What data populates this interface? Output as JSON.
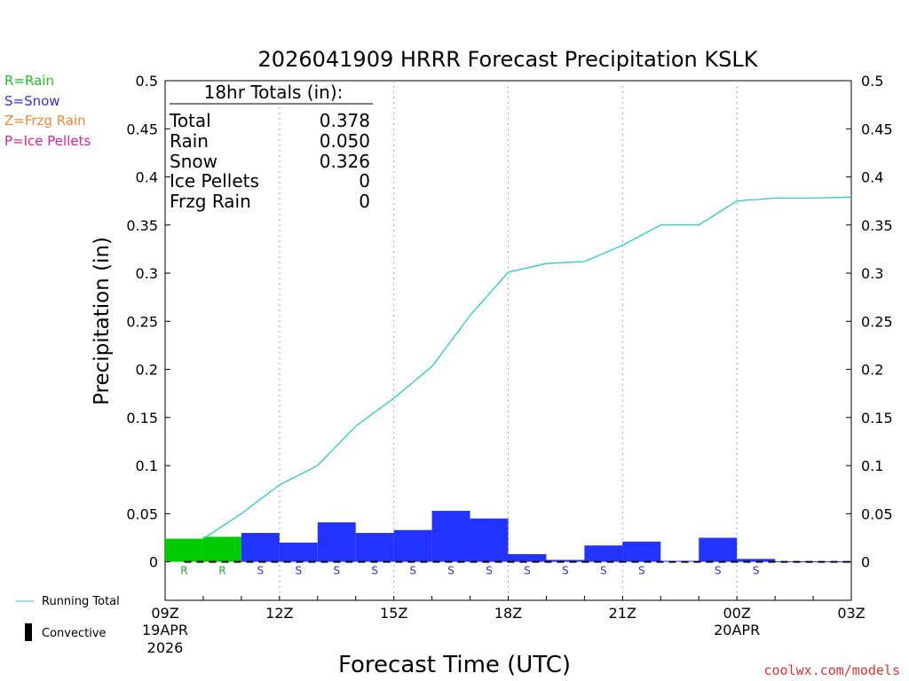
{
  "chart_data": {
    "type": "bar",
    "title": "2026041909 HRRR Forecast Precipitation KSLK",
    "xlabel": "Forecast Time (UTC)",
    "ylabel": "Precipitation (in)",
    "ylim": [
      -0.04,
      0.5
    ],
    "y_ticks": [
      0,
      0.05,
      0.1,
      0.15,
      0.2,
      0.25,
      0.3,
      0.35,
      0.4,
      0.45,
      0.5
    ],
    "y_tick_labels": [
      "0",
      "0.05",
      "0.1",
      "0.15",
      "0.2",
      "0.25",
      "0.3",
      "0.35",
      "0.4",
      "0.45",
      "0.5"
    ],
    "x_range_hours": [
      0,
      18
    ],
    "x_ticks": [
      {
        "hour": 0,
        "label": "09Z",
        "sub1": "19APR",
        "sub2": "2026"
      },
      {
        "hour": 3,
        "label": "12Z",
        "sub1": "",
        "sub2": ""
      },
      {
        "hour": 6,
        "label": "15Z",
        "sub1": "",
        "sub2": ""
      },
      {
        "hour": 9,
        "label": "18Z",
        "sub1": "",
        "sub2": ""
      },
      {
        "hour": 12,
        "label": "21Z",
        "sub1": "",
        "sub2": ""
      },
      {
        "hour": 15,
        "label": "00Z",
        "sub1": "20APR",
        "sub2": ""
      },
      {
        "hour": 18,
        "label": "03Z",
        "sub1": "",
        "sub2": ""
      }
    ],
    "bars": [
      {
        "hour": 1,
        "value": 0.024,
        "type": "R"
      },
      {
        "hour": 2,
        "value": 0.026,
        "type": "R"
      },
      {
        "hour": 3,
        "value": 0.03,
        "type": "S"
      },
      {
        "hour": 4,
        "value": 0.02,
        "type": "S"
      },
      {
        "hour": 5,
        "value": 0.041,
        "type": "S"
      },
      {
        "hour": 6,
        "value": 0.03,
        "type": "S"
      },
      {
        "hour": 7,
        "value": 0.033,
        "type": "S"
      },
      {
        "hour": 8,
        "value": 0.053,
        "type": "S"
      },
      {
        "hour": 9,
        "value": 0.045,
        "type": "S"
      },
      {
        "hour": 10,
        "value": 0.008,
        "type": "S"
      },
      {
        "hour": 11,
        "value": 0.002,
        "type": "S"
      },
      {
        "hour": 12,
        "value": 0.017,
        "type": "S"
      },
      {
        "hour": 13,
        "value": 0.021,
        "type": "S"
      },
      {
        "hour": 14,
        "value": 0.001,
        "type": ""
      },
      {
        "hour": 15,
        "value": 0.025,
        "type": "S"
      },
      {
        "hour": 16,
        "value": 0.003,
        "type": "S"
      },
      {
        "hour": 17,
        "value": 0.0005,
        "type": ""
      },
      {
        "hour": 18,
        "value": 0.0005,
        "type": ""
      }
    ],
    "running_total": {
      "name": "Running Total",
      "hours": [
        1,
        2,
        3,
        4,
        5,
        6,
        7,
        8,
        9,
        10,
        11,
        12,
        13,
        14,
        15,
        16,
        17,
        18
      ],
      "values": [
        0.024,
        0.05,
        0.08,
        0.1,
        0.141,
        0.17,
        0.203,
        0.256,
        0.301,
        0.31,
        0.312,
        0.329,
        0.35,
        0.35,
        0.375,
        0.378,
        0.378,
        0.379
      ]
    },
    "legend_top": [
      {
        "text": "R=Rain",
        "color": "#22c022"
      },
      {
        "text": "S=Snow",
        "color": "#3333ee"
      },
      {
        "text": "Z=Frzg Rain",
        "color": "#ee8833"
      },
      {
        "text": "P=Ice Pellets",
        "color": "#dd2299"
      }
    ],
    "legend_bottom": [
      {
        "text": "Running Total",
        "kind": "line"
      },
      {
        "text": "Convective",
        "kind": "bar"
      }
    ],
    "totals_box": {
      "heading": "18hr Totals (in):",
      "rows": [
        {
          "label": "Total",
          "value": "0.378"
        },
        {
          "label": "Rain",
          "value": "0.050"
        },
        {
          "label": "Snow",
          "value": "0.326"
        },
        {
          "label": "Ice Pellets",
          "value": "0"
        },
        {
          "label": "Frzg Rain",
          "value": "0"
        }
      ]
    },
    "credit": "coolwx.com/models"
  },
  "colors": {
    "rain": "#00cc00",
    "snow": "#2233ff",
    "rain_label": "#22aa22",
    "snow_label": "#3333cc",
    "running_total": "#22cccc",
    "credit": "#e8302a"
  }
}
